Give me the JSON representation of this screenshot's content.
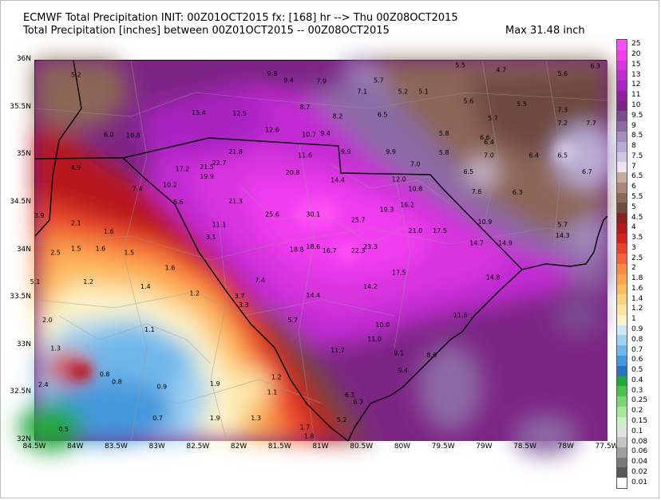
{
  "header": {
    "line1": "ECMWF Total Precipitation INIT: 00Z01OCT2015 fx: [168] hr --> Thu 00Z08OCT2015",
    "line2": "Total Precipitation [inches] between 00Z01OCT2015 -- 00Z08OCT2015",
    "max": "Max 31.48 inch"
  },
  "axes": {
    "lat_labels": [
      "36N",
      "35.5N",
      "35N",
      "34.5N",
      "34N",
      "33.5N",
      "33N",
      "32.5N",
      "32N"
    ],
    "lon_labels": [
      "84.5W",
      "84W",
      "83.5W",
      "83W",
      "82.5W",
      "82W",
      "81.5W",
      "81W",
      "80.5W",
      "80W",
      "79.5W",
      "79W",
      "78.5W",
      "78W",
      "77.5W"
    ]
  },
  "colorbar": {
    "labels": [
      "25",
      "20",
      "15",
      "13",
      "12",
      "11",
      "10",
      "9.5",
      "9",
      "8.5",
      "8",
      "7.5",
      "7",
      "6.5",
      "6",
      "5.5",
      "5",
      "4.5",
      "4",
      "3.5",
      "3",
      "2.5",
      "2",
      "1.8",
      "1.6",
      "1.4",
      "1.2",
      "1",
      "0.9",
      "0.8",
      "0.7",
      "0.6",
      "0.5",
      "0.4",
      "0.3",
      "0.25",
      "0.2",
      "0.15",
      "0.1",
      "0.08",
      "0.06",
      "0.04",
      "0.02",
      "0.01"
    ],
    "colors": [
      "#ff4df5",
      "#f23ef0",
      "#d935df",
      "#c12ad2",
      "#a824c0",
      "#8f1f9c",
      "#7d2585",
      "#7a4b8e",
      "#8c6aa6",
      "#a28cc0",
      "#b9acd4",
      "#d2c6e3",
      "#ebe3ef",
      "#c7ac9e",
      "#a98779",
      "#8c6657",
      "#6e4a3f",
      "#8a1f1d",
      "#b7191a",
      "#d62121",
      "#e8412a",
      "#f4613b",
      "#fb8a43",
      "#fba34f",
      "#fcbd61",
      "#fdd27e",
      "#fde4a4",
      "#fdf3c6",
      "#cde9f8",
      "#9fd1f2",
      "#70b7ea",
      "#4497dc",
      "#2a72c6",
      "#22a73a",
      "#4cc14a",
      "#7bd774",
      "#a7e79e",
      "#cdf1c7",
      "#e2e2e2",
      "#c3c3c3",
      "#9f9f9f",
      "#7a7a7a",
      "#595959",
      "#ffffff"
    ]
  },
  "chart_data": {
    "type": "heatmap",
    "title": "ECMWF Total Precipitation INIT: 00Z01OCT2015 fx: [168] hr --> Thu 00Z08OCT2015",
    "subtitle": "Total Precipitation [inches] between 00Z01OCT2015 -- 00Z08OCT2015",
    "max": 31.48,
    "xlim": [
      -84.5,
      -77.5
    ],
    "ylim": [
      32,
      36
    ],
    "points": [
      {
        "lon": -84.0,
        "lat": 35.83,
        "v": "5.2"
      },
      {
        "lon": -83.6,
        "lat": 35.2,
        "v": "6.0"
      },
      {
        "lon": -83.3,
        "lat": 35.19,
        "v": "10.8"
      },
      {
        "lon": -84.0,
        "lat": 34.85,
        "v": "4.9"
      },
      {
        "lon": -82.5,
        "lat": 35.43,
        "v": "15.4"
      },
      {
        "lon": -82.0,
        "lat": 35.42,
        "v": "12.5"
      },
      {
        "lon": -81.6,
        "lat": 35.84,
        "v": "9.8"
      },
      {
        "lon": -81.4,
        "lat": 35.77,
        "v": "9.4"
      },
      {
        "lon": -81.0,
        "lat": 35.76,
        "v": "7.9"
      },
      {
        "lon": -80.5,
        "lat": 35.65,
        "v": "7.1"
      },
      {
        "lon": -80.3,
        "lat": 35.77,
        "v": "5.7"
      },
      {
        "lon": -81.2,
        "lat": 35.49,
        "v": "8.7"
      },
      {
        "lon": -80.8,
        "lat": 35.39,
        "v": "8.2"
      },
      {
        "lon": -80.25,
        "lat": 35.41,
        "v": "6.5"
      },
      {
        "lon": -81.6,
        "lat": 35.25,
        "v": "12.6"
      },
      {
        "lon": -81.15,
        "lat": 35.2,
        "v": "10.7"
      },
      {
        "lon": -80.95,
        "lat": 35.21,
        "v": "9.4"
      },
      {
        "lon": -81.2,
        "lat": 34.98,
        "v": "11.6"
      },
      {
        "lon": -80.7,
        "lat": 35.02,
        "v": "9.9"
      },
      {
        "lon": -80.15,
        "lat": 35.02,
        "v": "9.9"
      },
      {
        "lon": -79.85,
        "lat": 34.89,
        "v": "7.0"
      },
      {
        "lon": -79.75,
        "lat": 35.65,
        "v": "5.1"
      },
      {
        "lon": -80.0,
        "lat": 35.65,
        "v": "5.2"
      },
      {
        "lon": -79.2,
        "lat": 35.55,
        "v": "5.6"
      },
      {
        "lon": -79.3,
        "lat": 35.93,
        "v": "5.5"
      },
      {
        "lon": -78.8,
        "lat": 35.88,
        "v": "4.7"
      },
      {
        "lon": -78.05,
        "lat": 35.84,
        "v": "5.6"
      },
      {
        "lon": -77.65,
        "lat": 35.92,
        "v": "6.3"
      },
      {
        "lon": -78.55,
        "lat": 35.52,
        "v": "5.5"
      },
      {
        "lon": -78.9,
        "lat": 35.37,
        "v": "5.7"
      },
      {
        "lon": -79.5,
        "lat": 35.21,
        "v": "5.8"
      },
      {
        "lon": -79.5,
        "lat": 35.01,
        "v": "5.8"
      },
      {
        "lon": -79.0,
        "lat": 35.17,
        "v": "6.6"
      },
      {
        "lon": -78.95,
        "lat": 35.12,
        "v": "6.4"
      },
      {
        "lon": -78.95,
        "lat": 34.98,
        "v": "7.0"
      },
      {
        "lon": -78.4,
        "lat": 34.98,
        "v": "6.4"
      },
      {
        "lon": -78.05,
        "lat": 34.98,
        "v": "6.5"
      },
      {
        "lon": -78.05,
        "lat": 35.46,
        "v": "7.3"
      },
      {
        "lon": -78.05,
        "lat": 35.32,
        "v": "7.2"
      },
      {
        "lon": -77.7,
        "lat": 35.32,
        "v": "7.7"
      },
      {
        "lon": -77.75,
        "lat": 34.81,
        "v": "6.7"
      },
      {
        "lon": -79.2,
        "lat": 34.81,
        "v": "6.5"
      },
      {
        "lon": -79.1,
        "lat": 34.6,
        "v": "7.6"
      },
      {
        "lon": -78.6,
        "lat": 34.59,
        "v": "6.3"
      },
      {
        "lon": -79.0,
        "lat": 34.28,
        "v": "10.9"
      },
      {
        "lon": -78.05,
        "lat": 34.25,
        "v": "5.7"
      },
      {
        "lon": -82.7,
        "lat": 34.84,
        "v": "17.2"
      },
      {
        "lon": -82.4,
        "lat": 34.86,
        "v": "21.5"
      },
      {
        "lon": -82.25,
        "lat": 34.9,
        "v": "22.7"
      },
      {
        "lon": -82.4,
        "lat": 34.76,
        "v": "19.9"
      },
      {
        "lon": -82.05,
        "lat": 35.02,
        "v": "21.8"
      },
      {
        "lon": -81.35,
        "lat": 34.8,
        "v": "20.8"
      },
      {
        "lon": -80.8,
        "lat": 34.72,
        "v": "14.4"
      },
      {
        "lon": -80.05,
        "lat": 34.73,
        "v": "12.0"
      },
      {
        "lon": -79.85,
        "lat": 34.63,
        "v": "10.8"
      },
      {
        "lon": -82.85,
        "lat": 34.67,
        "v": "10.2"
      },
      {
        "lon": -83.25,
        "lat": 34.63,
        "v": "7.4"
      },
      {
        "lon": -82.75,
        "lat": 34.49,
        "v": "8.6"
      },
      {
        "lon": -82.05,
        "lat": 34.5,
        "v": "21.3"
      },
      {
        "lon": -81.6,
        "lat": 34.36,
        "v": "25.6"
      },
      {
        "lon": -81.1,
        "lat": 34.36,
        "v": "30.1"
      },
      {
        "lon": -80.55,
        "lat": 34.3,
        "v": "25.7"
      },
      {
        "lon": -80.2,
        "lat": 34.41,
        "v": "19.3"
      },
      {
        "lon": -79.95,
        "lat": 34.46,
        "v": "16.2"
      },
      {
        "lon": -79.85,
        "lat": 34.19,
        "v": "21.0"
      },
      {
        "lon": -79.55,
        "lat": 34.19,
        "v": "17.5"
      },
      {
        "lon": -79.1,
        "lat": 34.06,
        "v": "14.7"
      },
      {
        "lon": -78.75,
        "lat": 34.06,
        "v": "14.9"
      },
      {
        "lon": -78.05,
        "lat": 34.14,
        "v": "14.3"
      },
      {
        "lon": -82.25,
        "lat": 34.25,
        "v": "11.1"
      },
      {
        "lon": -81.3,
        "lat": 33.99,
        "v": "18.8"
      },
      {
        "lon": -81.1,
        "lat": 34.02,
        "v": "18.6"
      },
      {
        "lon": -80.9,
        "lat": 33.98,
        "v": "16.7"
      },
      {
        "lon": -80.55,
        "lat": 33.98,
        "v": "22.3"
      },
      {
        "lon": -80.4,
        "lat": 34.02,
        "v": "23.3"
      },
      {
        "lon": -80.05,
        "lat": 33.75,
        "v": "17.5"
      },
      {
        "lon": -80.4,
        "lat": 33.6,
        "v": "14.2"
      },
      {
        "lon": -78.9,
        "lat": 33.7,
        "v": "14.8"
      },
      {
        "lon": -81.1,
        "lat": 33.51,
        "v": "14.4"
      },
      {
        "lon": -81.75,
        "lat": 33.67,
        "v": "7.4"
      },
      {
        "lon": -81.35,
        "lat": 33.25,
        "v": "5.7"
      },
      {
        "lon": -82.35,
        "lat": 34.12,
        "v": "3.1"
      },
      {
        "lon": -82.0,
        "lat": 33.5,
        "v": "3.7"
      },
      {
        "lon": -81.95,
        "lat": 33.41,
        "v": "3.3"
      },
      {
        "lon": -79.3,
        "lat": 33.3,
        "v": "11.6"
      },
      {
        "lon": -80.25,
        "lat": 33.2,
        "v": "10.0"
      },
      {
        "lon": -80.35,
        "lat": 33.05,
        "v": "11.0"
      },
      {
        "lon": -80.8,
        "lat": 32.93,
        "v": "11.7"
      },
      {
        "lon": -80.05,
        "lat": 32.9,
        "v": "9.1"
      },
      {
        "lon": -79.65,
        "lat": 32.88,
        "v": "8.6"
      },
      {
        "lon": -80.0,
        "lat": 32.72,
        "v": "9.4"
      },
      {
        "lon": -80.65,
        "lat": 32.46,
        "v": "6.1"
      },
      {
        "lon": -80.55,
        "lat": 32.39,
        "v": "6.3"
      },
      {
        "lon": -80.75,
        "lat": 32.2,
        "v": "5.2"
      },
      {
        "lon": -84.45,
        "lat": 34.35,
        "v": "3.9"
      },
      {
        "lon": -84.0,
        "lat": 34.27,
        "v": "2.1"
      },
      {
        "lon": -83.6,
        "lat": 34.18,
        "v": "1.6"
      },
      {
        "lon": -84.25,
        "lat": 33.96,
        "v": "2.5"
      },
      {
        "lon": -84.0,
        "lat": 34.0,
        "v": "1.5"
      },
      {
        "lon": -83.7,
        "lat": 34.0,
        "v": "1.6"
      },
      {
        "lon": -83.35,
        "lat": 33.96,
        "v": "1.5"
      },
      {
        "lon": -82.85,
        "lat": 33.8,
        "v": "1.6"
      },
      {
        "lon": -84.5,
        "lat": 33.65,
        "v": "5.1"
      },
      {
        "lon": -83.85,
        "lat": 33.65,
        "v": "1.2"
      },
      {
        "lon": -83.15,
        "lat": 33.6,
        "v": "1.4"
      },
      {
        "lon": -82.55,
        "lat": 33.53,
        "v": "1.2"
      },
      {
        "lon": -84.35,
        "lat": 33.25,
        "v": "2.0"
      },
      {
        "lon": -83.1,
        "lat": 33.15,
        "v": "1.1"
      },
      {
        "lon": -84.25,
        "lat": 32.95,
        "v": "1.3"
      },
      {
        "lon": -83.65,
        "lat": 32.68,
        "v": "0.8"
      },
      {
        "lon": -83.5,
        "lat": 32.6,
        "v": "0.8"
      },
      {
        "lon": -82.95,
        "lat": 32.55,
        "v": "0.9"
      },
      {
        "lon": -82.3,
        "lat": 32.58,
        "v": "1.9"
      },
      {
        "lon": -81.55,
        "lat": 32.65,
        "v": "1.2"
      },
      {
        "lon": -81.6,
        "lat": 32.49,
        "v": "1.1"
      },
      {
        "lon": -84.4,
        "lat": 32.57,
        "v": "2.4"
      },
      {
        "lon": -83.0,
        "lat": 32.22,
        "v": "0.7"
      },
      {
        "lon": -84.15,
        "lat": 32.1,
        "v": "0.5"
      },
      {
        "lon": -82.3,
        "lat": 32.22,
        "v": "1.9"
      },
      {
        "lon": -81.8,
        "lat": 32.22,
        "v": "1.3"
      },
      {
        "lon": -81.2,
        "lat": 32.12,
        "v": "1.7"
      },
      {
        "lon": -81.15,
        "lat": 32.03,
        "v": "1.8"
      }
    ]
  }
}
